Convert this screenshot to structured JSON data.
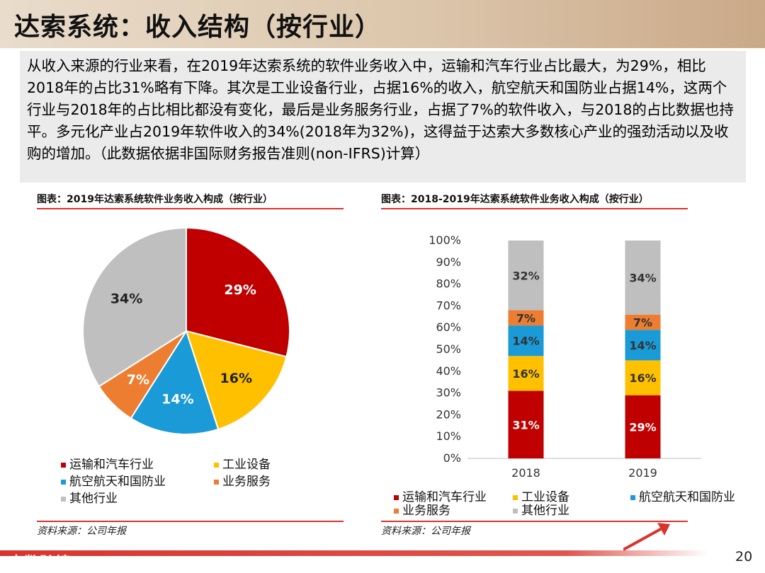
{
  "slide": {
    "title": "达索系统：收入结构（按行业）",
    "intro": "从收入来源的行业来看，在2019年达索系统的软件业务收入中，运输和汽车行业占比最大，为29%，相比2018年的占比31%略有下降。其次是工业设备行业，占据16%的收入，航空航天和国防业占据14%，这两个行业与2018年的占比相比都没有变化，最后是业务服务行业，占据了7%的软件收入，与2018的占比数据也持平。多元化产业占2019年软件收入的34%(2018年为32%)，这得益于达索大多数核心产业的强劲活动以及收购的增加。（此数据依据非国际财务报告准则(non-IFRS)计算）",
    "page_number": "20",
    "watermark": "大数跨境"
  },
  "left_panel": {
    "title": "图表：2019年达索系统软件业务收入构成（按行业）",
    "source": "资料来源：公司年报"
  },
  "right_panel": {
    "title": "图表：2018-2019年达索系统软件业务收入构成（按行业）",
    "source": "资料来源：公司年报"
  },
  "colors": {
    "transport": "#c00000",
    "industrial": "#ffc000",
    "aerospace": "#1a9ad6",
    "business": "#ed7d31",
    "other": "#bfbfbf"
  },
  "chart_data": [
    {
      "type": "pie",
      "labels": [
        "运输和汽车行业",
        "工业设备",
        "航空航天和国防业",
        "业务服务",
        "其他行业"
      ],
      "values": [
        29,
        16,
        14,
        7,
        34
      ],
      "data_labels": [
        "29%",
        "16%",
        "14%",
        "7%",
        "34%"
      ],
      "legend_position": "bottom"
    },
    {
      "type": "bar",
      "stacked": true,
      "categories": [
        "2018",
        "2019"
      ],
      "series": [
        {
          "name": "运输和汽车行业",
          "values": [
            31,
            29
          ]
        },
        {
          "name": "工业设备",
          "values": [
            16,
            16
          ]
        },
        {
          "name": "航空航天和国防业",
          "values": [
            14,
            14
          ]
        },
        {
          "name": "业务服务",
          "values": [
            7,
            7
          ]
        },
        {
          "name": "其他行业",
          "values": [
            32,
            34
          ]
        }
      ],
      "y_ticks": [
        "0%",
        "10%",
        "20%",
        "30%",
        "40%",
        "50%",
        "60%",
        "70%",
        "80%",
        "90%",
        "100%"
      ],
      "ylim": [
        0,
        100
      ],
      "legend_position": "bottom"
    }
  ]
}
